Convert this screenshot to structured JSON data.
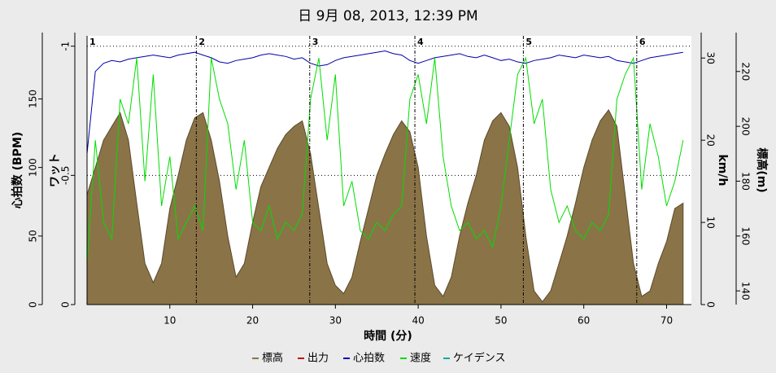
{
  "chart_data": {
    "type": "line",
    "title": "日 9月 08, 2013, 12:39 PM",
    "xlabel": "時間 (分)",
    "x": [
      0,
      1,
      2,
      3,
      4,
      5,
      6,
      7,
      8,
      9,
      10,
      11,
      12,
      13,
      14,
      15,
      16,
      17,
      18,
      19,
      20,
      21,
      22,
      23,
      24,
      25,
      26,
      27,
      28,
      29,
      30,
      31,
      32,
      33,
      34,
      35,
      36,
      37,
      38,
      39,
      40,
      41,
      42,
      43,
      44,
      45,
      46,
      47,
      48,
      49,
      50,
      51,
      52,
      53,
      54,
      55,
      56,
      57,
      58,
      59,
      60,
      61,
      62,
      63,
      64,
      65,
      66,
      67,
      68,
      69,
      70,
      71,
      72
    ],
    "xlim": [
      0,
      73
    ],
    "xticks": [
      10,
      20,
      30,
      40,
      50,
      60,
      70
    ],
    "ylabel": "心拍数 (BPM)",
    "ylim": [
      0,
      196
    ],
    "yticks": [
      0,
      50,
      100,
      150
    ],
    "y2label": "ワット",
    "y2lim": [
      0,
      -1.04
    ],
    "y2ticks": [
      -1,
      -0.5,
      0
    ],
    "y3label": "km/h",
    "y3lim": [
      0,
      32.7
    ],
    "y3ticks": [
      0,
      10,
      20,
      30
    ],
    "y4label": "標高(m)",
    "y4lim": [
      135,
      233
    ],
    "y4ticks": [
      140,
      160,
      180,
      200,
      220
    ],
    "grid": true,
    "laps": {
      "x": [
        0,
        13.2,
        26.9,
        39.6,
        52.7,
        66.4
      ],
      "labels": [
        "1",
        "2",
        "3",
        "4",
        "5",
        "6"
      ]
    },
    "series": [
      {
        "name": "標高",
        "color": "#8b7348",
        "axis": "y4",
        "kind": "area",
        "values": [
          175,
          185,
          195,
          200,
          205,
          195,
          172,
          150,
          143,
          150,
          170,
          182,
          195,
          203,
          205,
          195,
          180,
          160,
          145,
          150,
          165,
          178,
          185,
          192,
          197,
          200,
          202,
          190,
          170,
          150,
          142,
          139,
          145,
          158,
          170,
          182,
          190,
          197,
          202,
          198,
          185,
          160,
          142,
          138,
          145,
          160,
          172,
          182,
          195,
          202,
          205,
          200,
          185,
          160,
          140,
          136,
          140,
          150,
          160,
          172,
          185,
          195,
          202,
          206,
          200,
          175,
          150,
          138,
          140,
          150,
          158,
          170,
          172
        ]
      },
      {
        "name": "出力",
        "color": "#cc0000",
        "axis": "y2",
        "values": [
          0,
          0,
          0,
          0,
          0,
          0,
          0,
          0,
          0,
          0,
          0,
          0,
          0,
          0,
          0,
          0,
          0,
          0,
          0,
          0,
          0,
          0,
          0,
          0,
          0,
          0,
          0,
          0,
          0,
          0,
          0,
          0,
          0,
          0,
          0,
          0,
          0,
          0,
          0,
          0,
          0,
          0,
          0,
          0,
          0,
          0,
          0,
          0,
          0,
          0,
          0,
          0,
          0,
          0,
          0,
          0,
          0,
          0,
          0,
          0,
          0,
          0,
          0,
          0,
          0,
          0,
          0,
          0,
          0,
          0,
          0,
          0,
          0
        ]
      },
      {
        "name": "心拍数",
        "color": "#0000aa",
        "axis": "y",
        "values": [
          110,
          170,
          176,
          178,
          177,
          179,
          180,
          181,
          182,
          181,
          180,
          182,
          183,
          184,
          182,
          180,
          177,
          176,
          178,
          179,
          180,
          182,
          183,
          182,
          181,
          179,
          180,
          176,
          174,
          175,
          178,
          180,
          181,
          182,
          183,
          184,
          185,
          183,
          182,
          178,
          176,
          178,
          180,
          181,
          182,
          183,
          181,
          180,
          182,
          180,
          178,
          179,
          177,
          176,
          178,
          179,
          180,
          182,
          181,
          180,
          182,
          181,
          180,
          181,
          178,
          177,
          176,
          178,
          180,
          181,
          182,
          183,
          184
        ]
      },
      {
        "name": "速度",
        "color": "#00dd00",
        "axis": "y3",
        "values": [
          5,
          20,
          10,
          8,
          25,
          22,
          30,
          15,
          28,
          12,
          18,
          8,
          10,
          12,
          9,
          30,
          25,
          22,
          14,
          20,
          10,
          9,
          12,
          8,
          10,
          9,
          11,
          25,
          30,
          20,
          28,
          12,
          15,
          9,
          8,
          10,
          9,
          11,
          12,
          25,
          28,
          22,
          30,
          18,
          12,
          9,
          10,
          8,
          9,
          7,
          12,
          20,
          28,
          30,
          22,
          25,
          14,
          10,
          12,
          9,
          8,
          10,
          9,
          11,
          25,
          28,
          30,
          14,
          22,
          18,
          12,
          15,
          20
        ]
      },
      {
        "name": "ケイデンス",
        "color": "#00aaaa",
        "axis": "y"
      }
    ]
  }
}
